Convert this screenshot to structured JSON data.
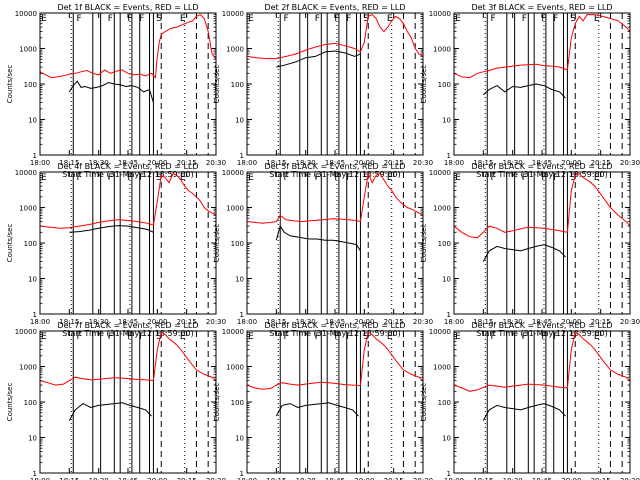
{
  "chart_data": {
    "type": "line",
    "x_tick_labels": [
      "18:00",
      "18:15",
      "18:30",
      "18:45",
      "20:00",
      "20:15",
      "20:30"
    ],
    "x_label": "Start Time (31-May-12 18:59:00)",
    "y_label": "Counts/sec",
    "y_scale": "log",
    "ylim": [
      1,
      10000
    ],
    "y_tick_labels": [
      "1",
      "10",
      "100",
      "1000",
      "10000"
    ],
    "xlim_minutes": [
      0,
      90
    ],
    "marker_letters": {
      "flare": "F",
      "saa": "S",
      "eclipse": "E"
    },
    "shared_markers": {
      "solid_lines_minutes": [
        17,
        27,
        31,
        38,
        41,
        47,
        51,
        56,
        58
      ],
      "dashed_lines_minutes": [
        62,
        80,
        86
      ],
      "dotted_lines_minutes": [
        16,
        46,
        74
      ],
      "letters": [
        {
          "text": "E",
          "minute": 2
        },
        {
          "text": "F",
          "minute": 20
        },
        {
          "text": "F",
          "minute": 36
        },
        {
          "text": "F",
          "minute": 46
        },
        {
          "text": "F",
          "minute": 52
        },
        {
          "text": "S",
          "minute": 61
        },
        {
          "text": "E",
          "minute": 73
        }
      ]
    },
    "panels": [
      {
        "title": "Det 1f BLACK = Events, RED = LLD",
        "series": [
          {
            "name": "Events",
            "color": "#000000",
            "x": [
              15,
              17,
              19,
              21,
              23,
              26,
              29,
              32,
              35,
              38,
              41,
              44,
              47,
              50,
              53,
              56,
              58
            ],
            "y": [
              60,
              90,
              120,
              80,
              85,
              75,
              80,
              90,
              110,
              100,
              95,
              85,
              90,
              80,
              60,
              70,
              30
            ]
          },
          {
            "name": "LLD",
            "color": "#ff0000",
            "x": [
              0,
              3,
              6,
              9,
              12,
              15,
              18,
              21,
              24,
              27,
              30,
              33,
              36,
              39,
              42,
              45,
              48,
              51,
              54,
              57,
              59,
              60,
              61,
              62,
              64,
              66,
              68,
              70,
              72,
              74,
              76,
              78,
              80,
              82,
              84,
              86,
              88,
              90
            ],
            "y": [
              220,
              180,
              150,
              160,
              170,
              190,
              200,
              220,
              240,
              200,
              180,
              250,
              200,
              230,
              250,
              200,
              180,
              190,
              170,
              200,
              150,
              600,
              1500,
              2500,
              3000,
              3500,
              3800,
              4000,
              4500,
              5000,
              5500,
              6000,
              8000,
              9000,
              7000,
              3000,
              700,
              500
            ]
          }
        ]
      },
      {
        "title": "Det 2f BLACK = Events, RED = LLD",
        "series": [
          {
            "name": "Events",
            "color": "#000000",
            "x": [
              15,
              20,
              25,
              30,
              35,
              40,
              45,
              50,
              55,
              58
            ],
            "y": [
              300,
              350,
              420,
              550,
              600,
              800,
              850,
              750,
              600,
              700
            ]
          },
          {
            "name": "LLD",
            "color": "#ff0000",
            "x": [
              0,
              5,
              10,
              15,
              20,
              25,
              30,
              35,
              40,
              45,
              50,
              55,
              58,
              60,
              62,
              64,
              66,
              68,
              70,
              72,
              74,
              76,
              78,
              80,
              82,
              84,
              86,
              88,
              90
            ],
            "y": [
              600,
              550,
              520,
              520,
              600,
              700,
              900,
              1100,
              1300,
              1400,
              1200,
              1000,
              800,
              1500,
              8000,
              9000,
              7000,
              4000,
              3000,
              4000,
              6000,
              8000,
              7000,
              5000,
              3000,
              2000,
              1000,
              700,
              600
            ]
          }
        ]
      },
      {
        "title": "Det 3f BLACK = Events, RED = LLD",
        "series": [
          {
            "name": "Events",
            "color": "#000000",
            "x": [
              15,
              18,
              22,
              26,
              30,
              34,
              38,
              42,
              46,
              50,
              54,
              57
            ],
            "y": [
              50,
              70,
              90,
              60,
              85,
              80,
              90,
              100,
              90,
              70,
              60,
              40
            ]
          },
          {
            "name": "LLD",
            "color": "#ff0000",
            "x": [
              0,
              4,
              8,
              12,
              15,
              18,
              22,
              26,
              30,
              34,
              38,
              42,
              46,
              50,
              54,
              58,
              60,
              62,
              64,
              66,
              68,
              72,
              76,
              80,
              84,
              88,
              90
            ],
            "y": [
              200,
              160,
              150,
              200,
              220,
              240,
              280,
              300,
              320,
              340,
              350,
              360,
              330,
              320,
              300,
              250,
              2000,
              5000,
              8000,
              6000,
              9000,
              9000,
              8000,
              7000,
              6000,
              4000,
              3000
            ]
          }
        ]
      },
      {
        "title": "Det 4f BLACK = Events, RED = LLD",
        "series": [
          {
            "name": "Events",
            "color": "#000000",
            "x": [
              15,
              20,
              25,
              30,
              35,
              40,
              45,
              50,
              55,
              58
            ],
            "y": [
              200,
              210,
              230,
              260,
              290,
              310,
              300,
              270,
              240,
              200
            ]
          },
          {
            "name": "LLD",
            "color": "#ff0000",
            "x": [
              0,
              5,
              10,
              15,
              20,
              25,
              30,
              35,
              40,
              45,
              50,
              55,
              58,
              60,
              62,
              64,
              66,
              68,
              70,
              72,
              74,
              76,
              78,
              80,
              82,
              84,
              86,
              88,
              90
            ],
            "y": [
              300,
              280,
              260,
              270,
              300,
              330,
              380,
              420,
              450,
              430,
              400,
              360,
              320,
              1500,
              8000,
              7000,
              5000,
              9000,
              8000,
              6000,
              4000,
              3000,
              2500,
              2000,
              1500,
              1000,
              800,
              700,
              600
            ]
          }
        ]
      },
      {
        "title": "Det 5f BLACK = Events, RED = LLD",
        "series": [
          {
            "name": "Events",
            "color": "#000000",
            "x": [
              15,
              17,
              19,
              22,
              25,
              28,
              32,
              36,
              40,
              44,
              48,
              52,
              56,
              58
            ],
            "y": [
              120,
              300,
              200,
              160,
              150,
              140,
              130,
              130,
              120,
              120,
              110,
              100,
              90,
              60
            ]
          },
          {
            "name": "LLD",
            "color": "#ff0000",
            "x": [
              0,
              4,
              8,
              12,
              15,
              17,
              20,
              24,
              28,
              32,
              36,
              40,
              44,
              48,
              52,
              56,
              58,
              60,
              62,
              64,
              66,
              68,
              70,
              72,
              74,
              76,
              78,
              80,
              82,
              84,
              86,
              88,
              90
            ],
            "y": [
              400,
              380,
              360,
              380,
              400,
              600,
              450,
              420,
              400,
              420,
              440,
              460,
              480,
              470,
              450,
              430,
              400,
              2000,
              9000,
              5000,
              8000,
              9000,
              6000,
              4000,
              3000,
              2000,
              1500,
              1200,
              1000,
              900,
              800,
              700,
              600
            ]
          }
        ]
      },
      {
        "title": "Det 6f BLACK = Events, RED = LLD",
        "series": [
          {
            "name": "Events",
            "color": "#000000",
            "x": [
              15,
              18,
              22,
              26,
              30,
              34,
              38,
              42,
              46,
              50,
              54,
              57
            ],
            "y": [
              30,
              60,
              80,
              70,
              65,
              60,
              70,
              80,
              90,
              75,
              60,
              40
            ]
          },
          {
            "name": "LLD",
            "color": "#ff0000",
            "x": [
              0,
              4,
              8,
              12,
              15,
              18,
              22,
              26,
              30,
              34,
              38,
              42,
              46,
              50,
              54,
              58,
              60,
              62,
              64,
              66,
              68,
              70,
              72,
              76,
              80,
              84,
              88,
              90
            ],
            "y": [
              300,
              200,
              150,
              140,
              200,
              300,
              260,
              200,
              220,
              250,
              280,
              270,
              260,
              240,
              220,
              200,
              3000,
              8000,
              9000,
              7000,
              6000,
              5000,
              4000,
              2000,
              1000,
              600,
              400,
              300
            ]
          }
        ]
      },
      {
        "title": "Det 7f BLACK = Events, RED = LLD",
        "series": [
          {
            "name": "Events",
            "color": "#000000",
            "x": [
              15,
              18,
              22,
              26,
              30,
              34,
              38,
              42,
              46,
              50,
              54,
              57
            ],
            "y": [
              30,
              60,
              90,
              70,
              80,
              85,
              90,
              95,
              80,
              70,
              60,
              40
            ]
          },
          {
            "name": "LLD",
            "color": "#ff0000",
            "x": [
              0,
              4,
              8,
              12,
              15,
              18,
              22,
              26,
              30,
              34,
              38,
              42,
              46,
              50,
              54,
              58,
              60,
              62,
              64,
              66,
              68,
              70,
              72,
              76,
              80,
              84,
              88,
              90
            ],
            "y": [
              400,
              350,
              300,
              320,
              400,
              500,
              450,
              420,
              440,
              460,
              480,
              470,
              450,
              430,
              420,
              400,
              3000,
              9000,
              8000,
              6000,
              5000,
              4000,
              3000,
              1500,
              800,
              600,
              500,
              400
            ]
          }
        ]
      },
      {
        "title": "Det 8f BLACK = Events, RED = LLD",
        "series": [
          {
            "name": "Events",
            "color": "#000000",
            "x": [
              15,
              18,
              22,
              26,
              30,
              34,
              38,
              42,
              46,
              50,
              54,
              57
            ],
            "y": [
              40,
              80,
              90,
              70,
              80,
              85,
              90,
              95,
              80,
              70,
              60,
              40
            ]
          },
          {
            "name": "LLD",
            "color": "#ff0000",
            "x": [
              0,
              4,
              8,
              12,
              15,
              18,
              22,
              26,
              30,
              34,
              38,
              42,
              46,
              50,
              54,
              58,
              60,
              62,
              64,
              66,
              68,
              70,
              72,
              76,
              80,
              84,
              88,
              90
            ],
            "y": [
              300,
              250,
              230,
              240,
              300,
              350,
              320,
              300,
              320,
              340,
              360,
              350,
              330,
              310,
              300,
              290,
              3000,
              9000,
              8000,
              6000,
              5000,
              4000,
              3000,
              1500,
              800,
              600,
              500,
              400
            ]
          }
        ]
      },
      {
        "title": "Det 9f BLACK = Events, RED = LLD",
        "series": [
          {
            "name": "Events",
            "color": "#000000",
            "x": [
              15,
              18,
              22,
              26,
              30,
              34,
              38,
              42,
              46,
              50,
              54,
              57
            ],
            "y": [
              30,
              60,
              80,
              70,
              65,
              60,
              70,
              80,
              90,
              75,
              60,
              40
            ]
          },
          {
            "name": "LLD",
            "color": "#ff0000",
            "x": [
              0,
              4,
              8,
              12,
              15,
              18,
              22,
              26,
              30,
              34,
              38,
              42,
              46,
              50,
              54,
              58,
              60,
              62,
              64,
              66,
              68,
              70,
              72,
              76,
              80,
              84,
              88,
              90
            ],
            "y": [
              300,
              250,
              200,
              220,
              260,
              300,
              280,
              260,
              280,
              300,
              320,
              310,
              300,
              280,
              260,
              250,
              3000,
              9000,
              8000,
              6000,
              5000,
              4000,
              3000,
              1500,
              800,
              600,
              500,
              400
            ]
          }
        ]
      }
    ]
  }
}
